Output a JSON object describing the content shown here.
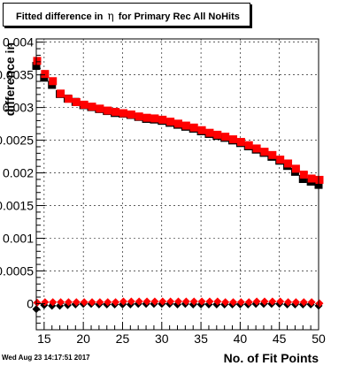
{
  "title": {
    "prefix": "Fitted difference in",
    "symbol": "η",
    "suffix": "for Primary Rec All NoHits"
  },
  "timestamp": "Wed Aug 23 14:17:51 2017",
  "colors": {
    "series_black": "#000000",
    "series_red": "#ff0000",
    "axis": "#000000",
    "grid": "#000000",
    "background": "#ffffff"
  },
  "chart_data": {
    "type": "scatter",
    "xlabel": "No. of Fit Points",
    "ylabel": "difference in",
    "xlim": [
      14,
      50
    ],
    "ylim": [
      -0.0004,
      0.00405
    ],
    "grid": true,
    "marker": "square",
    "x_ticks": [
      {
        "value": 15,
        "label": "15"
      },
      {
        "value": 20,
        "label": "20"
      },
      {
        "value": 25,
        "label": "25"
      },
      {
        "value": 30,
        "label": "30"
      },
      {
        "value": 35,
        "label": "35"
      },
      {
        "value": 40,
        "label": "40"
      },
      {
        "value": 45,
        "label": "45"
      },
      {
        "value": 50,
        "label": "50"
      }
    ],
    "y_ticks": [
      {
        "value": 0,
        "label": "0"
      },
      {
        "value": 0.0005,
        "label": "0.0005"
      },
      {
        "value": 0.001,
        "label": "0.001"
      },
      {
        "value": 0.0015,
        "label": "0.0015"
      },
      {
        "value": 0.002,
        "label": "0.002"
      },
      {
        "value": 0.0025,
        "label": "0.0025"
      },
      {
        "value": 0.003,
        "label": "0.003"
      },
      {
        "value": 0.0035,
        "label": "0.0035"
      },
      {
        "value": 0.004,
        "label": "0.004"
      }
    ],
    "x": [
      14,
      15,
      16,
      17,
      18,
      19,
      20,
      21,
      22,
      23,
      24,
      25,
      26,
      27,
      28,
      29,
      30,
      31,
      32,
      33,
      34,
      35,
      36,
      37,
      38,
      39,
      40,
      41,
      42,
      43,
      44,
      45,
      46,
      47,
      48,
      49,
      50
    ],
    "series": [
      {
        "color": "#000000",
        "upper": [
          0.00365,
          0.00347,
          0.00336,
          0.00322,
          0.00315,
          0.0031,
          0.00305,
          0.00302,
          0.00299,
          0.00296,
          0.00293,
          0.00292,
          0.0029,
          0.00287,
          0.00284,
          0.00283,
          0.00281,
          0.00278,
          0.00275,
          0.00272,
          0.00269,
          0.00265,
          0.00261,
          0.00258,
          0.00255,
          0.00251,
          0.00247,
          0.00242,
          0.00237,
          0.00232,
          0.00226,
          0.0022,
          0.00212,
          0.00203,
          0.00192,
          0.00188,
          0.00183
        ],
        "lower": [
          -7e-05,
          -1e-05,
          -2e-05,
          -2e-05,
          -1e-05,
          0.0,
          1e-05,
          1e-05,
          0.0,
          0.0,
          0.0,
          0.0,
          0.0,
          1e-05,
          1e-05,
          1e-05,
          1e-05,
          1e-05,
          0.0,
          1e-05,
          0.0,
          0.0,
          0.0,
          0.0,
          0.0,
          0.0,
          0.0,
          0.0,
          1e-05,
          1e-05,
          1e-05,
          1e-05,
          0.0,
          0.0,
          0.0,
          0.0,
          -2e-05
        ]
      },
      {
        "color": "#ff0000",
        "upper": [
          0.0037,
          0.0035,
          0.00339,
          0.0032,
          0.00312,
          0.00307,
          0.00303,
          0.003,
          0.00297,
          0.00294,
          0.00292,
          0.0029,
          0.00288,
          0.00285,
          0.00283,
          0.00282,
          0.0028,
          0.00277,
          0.00274,
          0.00271,
          0.00268,
          0.00264,
          0.0026,
          0.00257,
          0.00254,
          0.0025,
          0.00246,
          0.00241,
          0.00236,
          0.00231,
          0.00226,
          0.00219,
          0.00213,
          0.00205,
          0.00196,
          0.0019,
          0.00188
        ],
        "lower": [
          0.0,
          1e-05,
          1e-05,
          1e-05,
          1e-05,
          1e-05,
          1e-05,
          1e-05,
          1e-05,
          1e-05,
          1e-05,
          2e-05,
          2e-05,
          2e-05,
          2e-05,
          2e-05,
          2e-05,
          2e-05,
          2e-05,
          2e-05,
          2e-05,
          2e-05,
          2e-05,
          2e-05,
          1e-05,
          1e-05,
          1e-05,
          1e-05,
          2e-05,
          2e-05,
          2e-05,
          2e-05,
          1e-05,
          1e-05,
          1e-05,
          1e-05,
          -1e-05
        ]
      }
    ]
  }
}
